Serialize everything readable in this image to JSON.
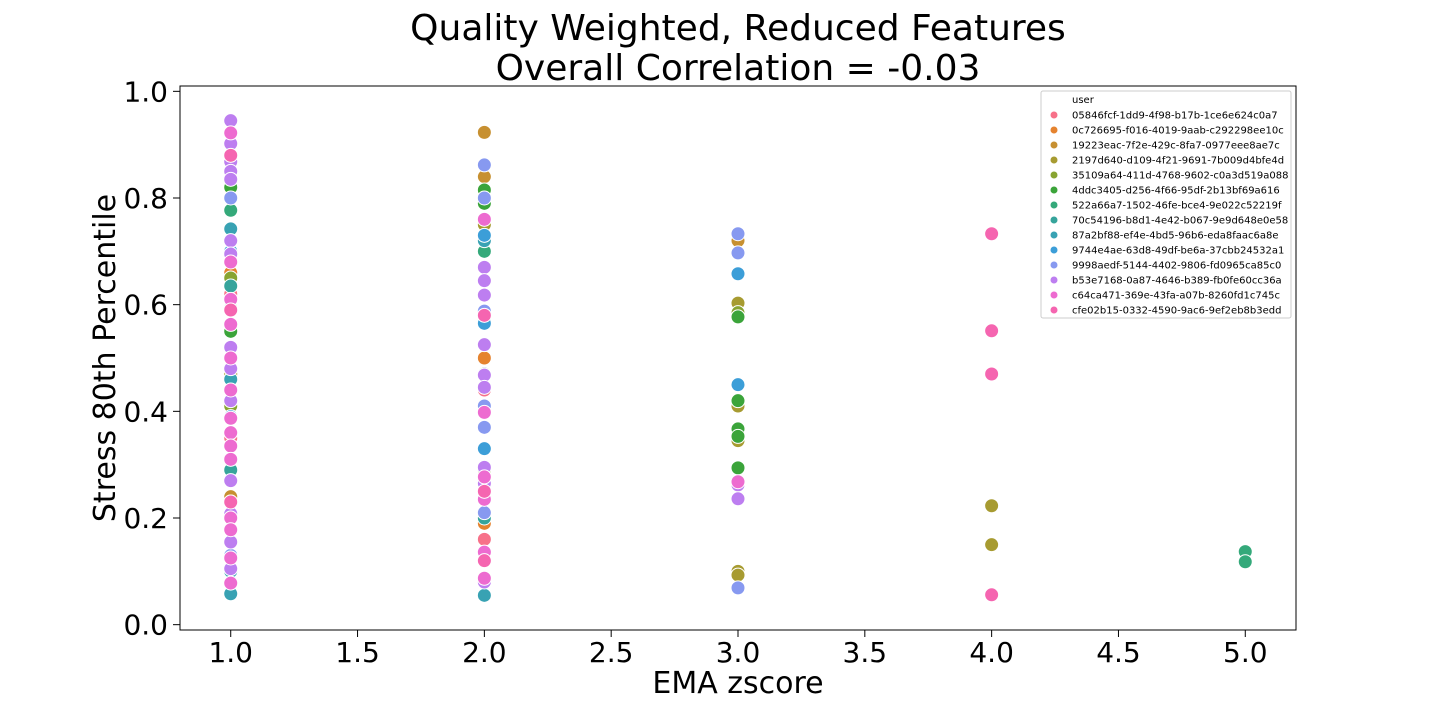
{
  "chart_data": {
    "type": "scatter",
    "title": "Quality Weighted, Reduced Features",
    "subtitle": "Overall Correlation = -0.03",
    "xlabel": "EMA zscore",
    "ylabel": "Stress 80th Percentile",
    "xlim": [
      0.8,
      5.2
    ],
    "ylim": [
      -0.01,
      1.01
    ],
    "xticks": [
      "1.0",
      "1.5",
      "2.0",
      "2.5",
      "3.0",
      "3.5",
      "4.0",
      "4.5",
      "5.0"
    ],
    "yticks": [
      "0.0",
      "0.2",
      "0.4",
      "0.6",
      "0.8",
      "1.0"
    ],
    "grid": false,
    "legend": {
      "title": "user",
      "placement": "top-right"
    },
    "series": [
      {
        "name": "05846fcf-1dd9-4f98-b17b-1ce6e624c0a7",
        "color": "#f77189",
        "points": [
          [
            1,
            0.62
          ],
          [
            1,
            0.35
          ],
          [
            2,
            0.44
          ],
          [
            2,
            0.16
          ]
        ]
      },
      {
        "name": "0c726695-f016-4019-9aab-c292298ee10c",
        "color": "#e5832f",
        "points": [
          [
            1,
            0.66
          ],
          [
            1,
            0.29
          ],
          [
            2,
            0.5
          ],
          [
            2,
            0.19
          ]
        ]
      },
      {
        "name": "19223eac-7f2e-429c-8fa7-0977eee8ae7c",
        "color": "#c79031",
        "points": [
          [
            1,
            0.56
          ],
          [
            1,
            0.24
          ],
          [
            2,
            0.923
          ],
          [
            2,
            0.84
          ],
          [
            2,
            0.055
          ],
          [
            3,
            0.72
          ]
        ]
      },
      {
        "name": "2197d640-d109-4f21-9691-7b009d4bfe4d",
        "color": "#a79b31",
        "points": [
          [
            1,
            0.72
          ],
          [
            1,
            0.47
          ],
          [
            2,
            0.75
          ],
          [
            2,
            0.33
          ],
          [
            3,
            0.603
          ],
          [
            3,
            0.41
          ],
          [
            3,
            0.345
          ],
          [
            3,
            0.1
          ],
          [
            3,
            0.093
          ],
          [
            4,
            0.223
          ],
          [
            4,
            0.15
          ]
        ]
      },
      {
        "name": "35109a64-411d-4768-9602-c0a3d519a088",
        "color": "#88a431",
        "points": [
          [
            1,
            0.65
          ],
          [
            1,
            0.41
          ],
          [
            2,
            0.67
          ],
          [
            2,
            0.29
          ],
          [
            3,
            0.585
          ]
        ]
      },
      {
        "name": "4ddc3405-d256-4f66-95df-2b13bf69a616",
        "color": "#3ba43a",
        "points": [
          [
            1,
            0.82
          ],
          [
            1,
            0.55
          ],
          [
            2,
            0.815
          ],
          [
            2,
            0.79
          ],
          [
            3,
            0.577
          ],
          [
            3,
            0.42
          ],
          [
            3,
            0.367
          ],
          [
            3,
            0.353
          ],
          [
            3,
            0.294
          ]
        ]
      },
      {
        "name": "522a66a7-1502-46fe-bce4-9e022c52219f",
        "color": "#34a97a",
        "points": [
          [
            1,
            0.777
          ],
          [
            1,
            0.593
          ],
          [
            1,
            0.44
          ],
          [
            2,
            0.7
          ],
          [
            5,
            0.137
          ],
          [
            5,
            0.118
          ]
        ]
      },
      {
        "name": "70c54196-b8d1-4e42-b067-9e9d648e0e58",
        "color": "#36a49b",
        "points": [
          [
            1,
            0.945
          ],
          [
            1,
            0.635
          ],
          [
            1,
            0.29
          ],
          [
            2,
            0.57
          ],
          [
            2,
            0.2
          ]
        ]
      },
      {
        "name": "87a2bf88-ef4e-4bd5-96b6-eda8faac6a8e",
        "color": "#38a2b3",
        "points": [
          [
            1,
            0.742
          ],
          [
            1,
            0.46
          ],
          [
            1,
            0.1
          ],
          [
            1,
            0.058
          ],
          [
            2,
            0.72
          ],
          [
            2,
            0.47
          ],
          [
            2,
            0.055
          ]
        ]
      },
      {
        "name": "9744e4ae-63d8-49df-be6a-37cbb24532a1",
        "color": "#3c9ed8",
        "points": [
          [
            1,
            0.7
          ],
          [
            1,
            0.39
          ],
          [
            2,
            0.73
          ],
          [
            2,
            0.565
          ],
          [
            2,
            0.33
          ],
          [
            3,
            0.658
          ],
          [
            3,
            0.45
          ]
        ]
      },
      {
        "name": "9998aedf-5144-4402-9806-fd0965ca85c0",
        "color": "#8799f0",
        "points": [
          [
            1,
            0.8
          ],
          [
            1,
            0.5
          ],
          [
            1,
            0.13
          ],
          [
            2,
            0.862
          ],
          [
            2,
            0.8
          ],
          [
            2,
            0.588
          ],
          [
            2,
            0.41
          ],
          [
            2,
            0.37
          ],
          [
            2,
            0.21
          ],
          [
            3,
            0.733
          ],
          [
            3,
            0.697
          ],
          [
            3,
            0.069
          ]
        ]
      },
      {
        "name": "b53e7168-0a87-4646-b389-fb0fe60cc36a",
        "color": "#bd7ef0",
        "points": [
          [
            1,
            0.945
          ],
          [
            1,
            0.902
          ],
          [
            1,
            0.868
          ],
          [
            1,
            0.85
          ],
          [
            1,
            0.835
          ],
          [
            1,
            0.72
          ],
          [
            1,
            0.695
          ],
          [
            1,
            0.52
          ],
          [
            1,
            0.48
          ],
          [
            1,
            0.42
          ],
          [
            1,
            0.27
          ],
          [
            1,
            0.23
          ],
          [
            1,
            0.208
          ],
          [
            1,
            0.155
          ],
          [
            1,
            0.105
          ],
          [
            2,
            0.67
          ],
          [
            2,
            0.645
          ],
          [
            2,
            0.618
          ],
          [
            2,
            0.525
          ],
          [
            2,
            0.468
          ],
          [
            2,
            0.445
          ],
          [
            2,
            0.295
          ],
          [
            2,
            0.265
          ],
          [
            2,
            0.08
          ],
          [
            3,
            0.262
          ],
          [
            3,
            0.236
          ]
        ]
      },
      {
        "name": "c64ca471-369e-43fa-a07b-8260fd1c745c",
        "color": "#ed6bd0",
        "points": [
          [
            1,
            0.922
          ],
          [
            1,
            0.68
          ],
          [
            1,
            0.61
          ],
          [
            1,
            0.563
          ],
          [
            1,
            0.5
          ],
          [
            1,
            0.44
          ],
          [
            1,
            0.387
          ],
          [
            1,
            0.36
          ],
          [
            1,
            0.335
          ],
          [
            1,
            0.31
          ],
          [
            1,
            0.2
          ],
          [
            1,
            0.178
          ],
          [
            1,
            0.125
          ],
          [
            1,
            0.078
          ],
          [
            2,
            0.76
          ],
          [
            2,
            0.398
          ],
          [
            2,
            0.277
          ],
          [
            2,
            0.235
          ],
          [
            2,
            0.136
          ],
          [
            2,
            0.087
          ],
          [
            3,
            0.268
          ]
        ]
      },
      {
        "name": "cfe02b15-0332-4590-9ac6-9ef2eb8b3edd",
        "color": "#f565b0",
        "points": [
          [
            1,
            0.88
          ],
          [
            1,
            0.59
          ],
          [
            1,
            0.23
          ],
          [
            2,
            0.58
          ],
          [
            2,
            0.25
          ],
          [
            2,
            0.12
          ],
          [
            4,
            0.733
          ],
          [
            4,
            0.551
          ],
          [
            4,
            0.47
          ],
          [
            4,
            0.056
          ]
        ]
      }
    ]
  }
}
